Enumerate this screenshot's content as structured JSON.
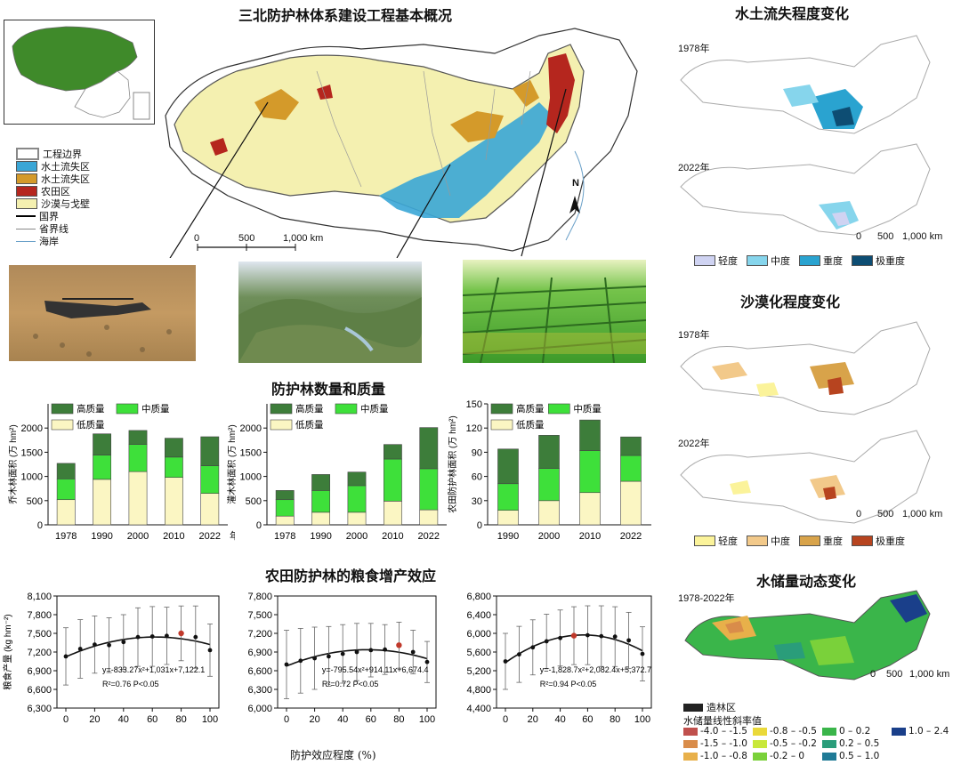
{
  "main_title": "三北防护林体系建设工程基本概况",
  "map_legend": {
    "items": [
      {
        "label": "工程边界",
        "color": "#ffffff",
        "type": "box"
      },
      {
        "label": "水土流失区",
        "color": "#3aa6d6",
        "type": "box"
      },
      {
        "label": "水土流失区",
        "color": "#d49a2a",
        "type": "box"
      },
      {
        "label": "农田区",
        "color": "#b5261e",
        "type": "box"
      },
      {
        "label": "沙漠与戈壁",
        "color": "#f4f0b0",
        "type": "box"
      },
      {
        "label": "国界",
        "color": "#000000",
        "type": "line"
      },
      {
        "label": "省界线",
        "color": "#888888",
        "type": "line"
      },
      {
        "label": "海岸",
        "color": "#6aa0c8",
        "type": "line"
      }
    ]
  },
  "scale_main": {
    "labels": [
      "0",
      "500",
      "1,000 km"
    ]
  },
  "north": "N",
  "section_quantity": "防护林数量和质量",
  "section_yield": "农田防护林的粮食增产效应",
  "right": {
    "soil_title": "水土流失程度变化",
    "soil_years": [
      "1978年",
      "2022年"
    ],
    "soil_legend": [
      "轻度",
      "中度",
      "重度",
      "极重度"
    ],
    "soil_colors": [
      "#cfd3f2",
      "#86d5ec",
      "#2aa3d0",
      "#0d4d73"
    ],
    "desert_title": "沙漠化程度变化",
    "desert_years": [
      "1978年",
      "2022年"
    ],
    "desert_legend": [
      "轻度",
      "中度",
      "重度",
      "极重度"
    ],
    "desert_colors": [
      "#fbf39a",
      "#f2c98a",
      "#d8a34a",
      "#b7441f"
    ],
    "water_title": "水储量动态变化",
    "water_period": "1978-2022年",
    "water_legend_head": "造林区",
    "water_legend_sub": "水储量线性斜率值",
    "water_legend": [
      {
        "label": "-4.0 – -1.5",
        "color": "#c0504d"
      },
      {
        "label": "-1.5 – -1.0",
        "color": "#d98c4a"
      },
      {
        "label": "-1.0 – -0.8",
        "color": "#e8b04a"
      },
      {
        "label": "-0.8 – -0.5",
        "color": "#ead93a"
      },
      {
        "label": "-0.5 – -0.2",
        "color": "#c8e83a"
      },
      {
        "label": "-0.2 – 0",
        "color": "#7ad13a"
      },
      {
        "label": "0 – 0.2",
        "color": "#3ab54a"
      },
      {
        "label": "0.2 – 0.5",
        "color": "#2a9d7a"
      },
      {
        "label": "0.5 – 1.0",
        "color": "#1f7a96"
      },
      {
        "label": "1.0 – 2.4",
        "color": "#1a3f8a"
      }
    ],
    "scale_labels": [
      "0",
      "500",
      "1,000 km"
    ]
  },
  "chart_data": [
    {
      "type": "bar",
      "stacked": true,
      "categories": [
        "1978",
        "1990",
        "2000",
        "2010",
        "2022"
      ],
      "xlabel_suffix": "年",
      "ylabel": "乔木林面积 (万 hm²)",
      "ylim": [
        0,
        2500
      ],
      "yticks": [
        0,
        500,
        1000,
        1500,
        2000
      ],
      "series": [
        {
          "name": "低质量",
          "color": "#fbf6c3",
          "values": [
            520,
            940,
            1100,
            980,
            650
          ]
        },
        {
          "name": "中质量",
          "color": "#3ee03a",
          "values": [
            430,
            500,
            560,
            420,
            570
          ]
        },
        {
          "name": "高质量",
          "color": "#3d7d3a",
          "values": [
            320,
            440,
            290,
            390,
            600
          ]
        }
      ]
    },
    {
      "type": "bar",
      "stacked": true,
      "categories": [
        "1978",
        "1990",
        "2000",
        "2010",
        "2022"
      ],
      "ylabel": "灌木林面积 (万 hm²)",
      "ylim": [
        0,
        2500
      ],
      "yticks": [
        0,
        500,
        1000,
        1500,
        2000
      ],
      "series": [
        {
          "name": "低质量",
          "color": "#fbf6c3",
          "values": [
            180,
            260,
            260,
            490,
            310
          ]
        },
        {
          "name": "中质量",
          "color": "#3ee03a",
          "values": [
            340,
            450,
            550,
            870,
            850
          ]
        },
        {
          "name": "高质量",
          "color": "#3d7d3a",
          "values": [
            190,
            330,
            280,
            300,
            850
          ]
        }
      ]
    },
    {
      "type": "bar",
      "stacked": true,
      "categories": [
        "1990",
        "2000",
        "2010",
        "2022"
      ],
      "ylabel": "农田防护林面积 (万 hm²)",
      "ylim": [
        0,
        150
      ],
      "yticks": [
        0,
        30,
        60,
        90,
        120,
        150
      ],
      "series": [
        {
          "name": "低质量",
          "color": "#fbf6c3",
          "values": [
            18,
            30,
            40,
            54
          ]
        },
        {
          "name": "中质量",
          "color": "#3ee03a",
          "values": [
            33,
            40,
            52,
            32
          ]
        },
        {
          "name": "高质量",
          "color": "#3d7d3a",
          "values": [
            43,
            41,
            38,
            23
          ]
        }
      ]
    },
    {
      "type": "scatter",
      "x": [
        0,
        10,
        20,
        30,
        40,
        50,
        60,
        70,
        80,
        90,
        100
      ],
      "y": [
        7130,
        7250,
        7320,
        7310,
        7360,
        7440,
        7450,
        7460,
        7500,
        7440,
        7230
      ],
      "err": [
        460,
        470,
        460,
        440,
        440,
        470,
        480,
        460,
        440,
        500,
        420
      ],
      "highlight_index": 8,
      "fit": {
        "a": -833.27,
        "b": 1031,
        "c": 7122.1
      },
      "equation": "y=-833.27x²+1,031x+7,122.1",
      "stats": "R²=0.76   P<0.05",
      "ylabel": "粮食产量 (kg hm⁻²)",
      "ylim": [
        6300,
        8100
      ],
      "yticks": [
        6300,
        6600,
        6900,
        7200,
        7500,
        7800,
        8100
      ],
      "ytick_labels": [
        "6,300",
        "6,600",
        "6,900",
        "7,200",
        "7,500",
        "7,800",
        "8,100"
      ],
      "xticks": [
        0,
        20,
        40,
        60,
        80,
        100
      ]
    },
    {
      "type": "scatter",
      "x": [
        0,
        10,
        20,
        30,
        40,
        50,
        60,
        70,
        80,
        90,
        100
      ],
      "y": [
        6700,
        6760,
        6800,
        6830,
        6870,
        6900,
        6930,
        6940,
        7010,
        6900,
        6740
      ],
      "err": [
        550,
        520,
        500,
        480,
        470,
        460,
        430,
        400,
        370,
        350,
        330
      ],
      "highlight_index": 8,
      "fit": {
        "a": -795.54,
        "b": 914.11,
        "c": 6674.4
      },
      "equation": "y=-795.54x²+914.11x+6,674.4",
      "stats": "R²=0.72   P<0.05",
      "ylim": [
        6000,
        7800
      ],
      "yticks": [
        6000,
        6300,
        6600,
        6900,
        7200,
        7500,
        7800
      ],
      "ytick_labels": [
        "6,000",
        "6,300",
        "6,600",
        "6,900",
        "7,200",
        "7,500",
        "7,800"
      ],
      "xticks": [
        0,
        20,
        40,
        60,
        80,
        100
      ],
      "xlabel": "防护效应程度 (%)"
    },
    {
      "type": "scatter",
      "x": [
        0,
        10,
        20,
        30,
        40,
        50,
        60,
        70,
        80,
        90,
        100
      ],
      "y": [
        5400,
        5550,
        5700,
        5830,
        5900,
        5950,
        5960,
        5940,
        5930,
        5850,
        5560
      ],
      "err": [
        600,
        600,
        590,
        580,
        600,
        620,
        630,
        650,
        640,
        600,
        580
      ],
      "highlight_index": 5,
      "fit": {
        "a": -1828.7,
        "b": 2082.4,
        "c": 5372.7
      },
      "equation": "y=-1,828.7x²+2,082.4x+5,372.7",
      "stats": "R²=0.94   P<0.05",
      "ylim": [
        4400,
        6800
      ],
      "yticks": [
        4400,
        4800,
        5200,
        5600,
        6000,
        6400,
        6800
      ],
      "ytick_labels": [
        "4,400",
        "4,800",
        "5,200",
        "5,600",
        "6,000",
        "6,400",
        "6,800"
      ],
      "xticks": [
        0,
        20,
        40,
        60,
        80,
        100
      ]
    }
  ]
}
